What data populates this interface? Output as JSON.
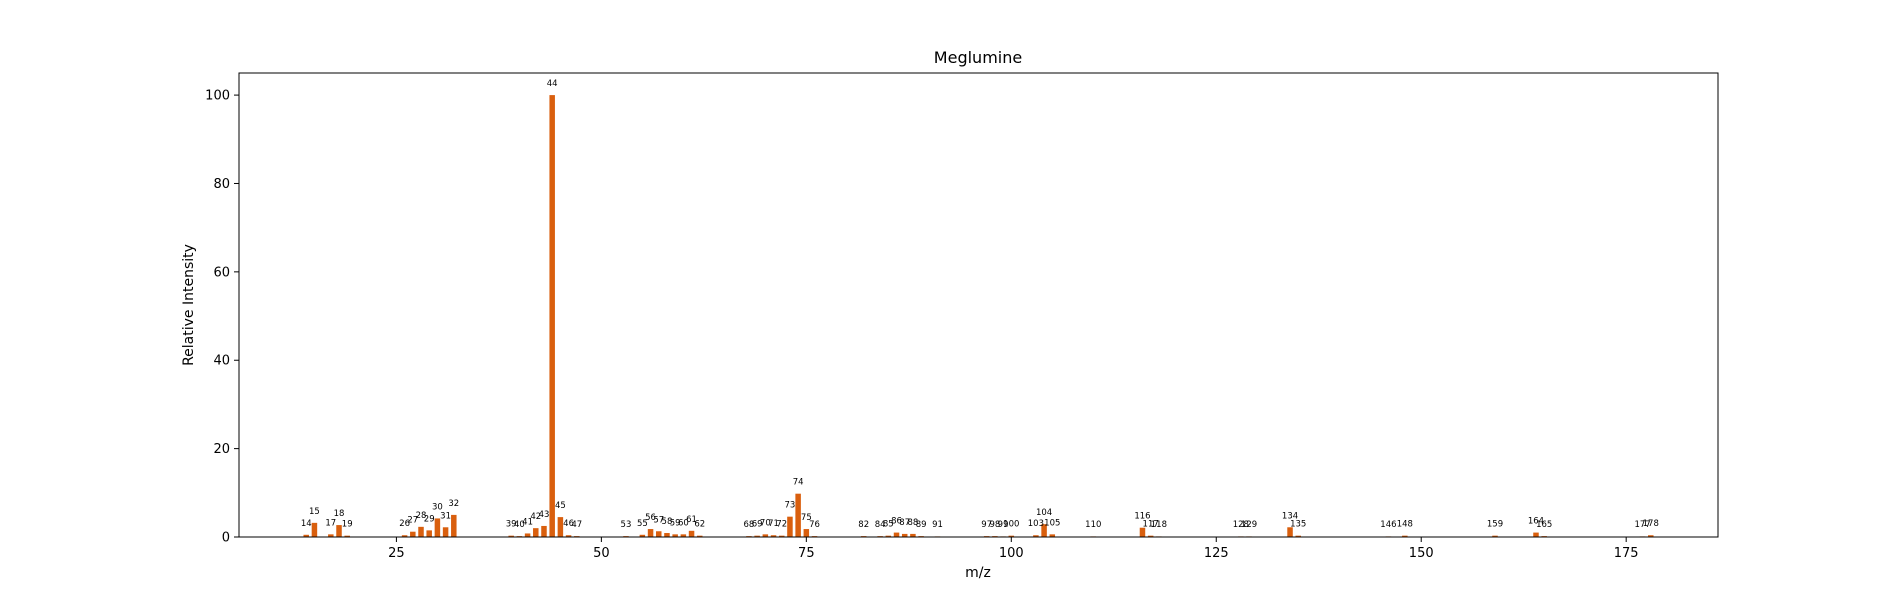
{
  "chart_data": {
    "type": "bar",
    "title": "Meglumine",
    "xlabel": "m/z",
    "ylabel": "Relative Intensity",
    "xlim": [
      5.8,
      186.2
    ],
    "ylim": [
      0,
      105
    ],
    "x_ticks": [
      25,
      50,
      75,
      100,
      125,
      150,
      175
    ],
    "y_ticks": [
      0,
      20,
      40,
      60,
      80,
      100
    ],
    "grid": false,
    "bar_color": "#d95f0e",
    "series": [
      {
        "peaks": [
          {
            "x": 14,
            "y": 0.5
          },
          {
            "x": 15,
            "y": 3.2
          },
          {
            "x": 17,
            "y": 0.6
          },
          {
            "x": 18,
            "y": 2.7
          },
          {
            "x": 19,
            "y": 0.3
          },
          {
            "x": 26,
            "y": 0.4
          },
          {
            "x": 27,
            "y": 1.2
          },
          {
            "x": 28,
            "y": 2.3
          },
          {
            "x": 29,
            "y": 1.5
          },
          {
            "x": 30,
            "y": 4.2
          },
          {
            "x": 31,
            "y": 2.2
          },
          {
            "x": 32,
            "y": 5.0
          },
          {
            "x": 39,
            "y": 0.3
          },
          {
            "x": 40,
            "y": 0.2
          },
          {
            "x": 41,
            "y": 0.8
          },
          {
            "x": 42,
            "y": 2.0
          },
          {
            "x": 43,
            "y": 2.5
          },
          {
            "x": 44,
            "y": 100
          },
          {
            "x": 45,
            "y": 4.5
          },
          {
            "x": 46,
            "y": 0.4
          },
          {
            "x": 47,
            "y": 0.2
          },
          {
            "x": 53,
            "y": 0.2
          },
          {
            "x": 55,
            "y": 0.5
          },
          {
            "x": 56,
            "y": 1.8
          },
          {
            "x": 57,
            "y": 1.3
          },
          {
            "x": 58,
            "y": 0.9
          },
          {
            "x": 59,
            "y": 0.6
          },
          {
            "x": 60,
            "y": 0.6
          },
          {
            "x": 61,
            "y": 1.4
          },
          {
            "x": 62,
            "y": 0.3
          },
          {
            "x": 68,
            "y": 0.2
          },
          {
            "x": 69,
            "y": 0.3
          },
          {
            "x": 70,
            "y": 0.6
          },
          {
            "x": 71,
            "y": 0.4
          },
          {
            "x": 72,
            "y": 0.3
          },
          {
            "x": 73,
            "y": 4.6
          },
          {
            "x": 74,
            "y": 9.8
          },
          {
            "x": 75,
            "y": 1.8
          },
          {
            "x": 76,
            "y": 0.2
          },
          {
            "x": 82,
            "y": 0.2
          },
          {
            "x": 84,
            "y": 0.2
          },
          {
            "x": 85,
            "y": 0.3
          },
          {
            "x": 86,
            "y": 1.0
          },
          {
            "x": 87,
            "y": 0.7
          },
          {
            "x": 88,
            "y": 0.7
          },
          {
            "x": 89,
            "y": 0.2
          },
          {
            "x": 91,
            "y": 0.1
          },
          {
            "x": 97,
            "y": 0.2
          },
          {
            "x": 98,
            "y": 0.2
          },
          {
            "x": 99,
            "y": 0.1
          },
          {
            "x": 100,
            "y": 0.3
          },
          {
            "x": 103,
            "y": 0.4
          },
          {
            "x": 104,
            "y": 2.9
          },
          {
            "x": 105,
            "y": 0.6
          },
          {
            "x": 110,
            "y": 0.1
          },
          {
            "x": 116,
            "y": 2.1
          },
          {
            "x": 117,
            "y": 0.3
          },
          {
            "x": 118,
            "y": 0.1
          },
          {
            "x": 128,
            "y": 0.1
          },
          {
            "x": 129,
            "y": 0.1
          },
          {
            "x": 134,
            "y": 2.2
          },
          {
            "x": 135,
            "y": 0.3
          },
          {
            "x": 146,
            "y": 0.1
          },
          {
            "x": 148,
            "y": 0.3
          },
          {
            "x": 159,
            "y": 0.3
          },
          {
            "x": 164,
            "y": 1.0
          },
          {
            "x": 165,
            "y": 0.2
          },
          {
            "x": 177,
            "y": 0.1
          },
          {
            "x": 178,
            "y": 0.4
          }
        ]
      }
    ]
  }
}
